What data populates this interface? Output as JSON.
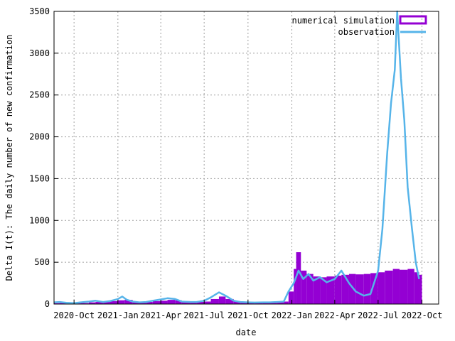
{
  "chart_data": {
    "type": "bar",
    "xlabel": "date",
    "ylabel": "Delta I(t): The daily number of new confirmation",
    "x_range": [
      "2020-08-20",
      "2022-11-05"
    ],
    "ylim": [
      0,
      3500
    ],
    "grid": true,
    "legend_position": "top-right",
    "x_ticks": [
      {
        "date": "2020-10-01",
        "label": "2020-Oct"
      },
      {
        "date": "2021-01-01",
        "label": "2021-Jan"
      },
      {
        "date": "2021-04-01",
        "label": "2021-Apr"
      },
      {
        "date": "2021-07-01",
        "label": "2021-Jul"
      },
      {
        "date": "2021-10-01",
        "label": "2021-Oct"
      },
      {
        "date": "2022-01-01",
        "label": "2022-Jan"
      },
      {
        "date": "2022-04-01",
        "label": "2022-Apr"
      },
      {
        "date": "2022-07-01",
        "label": "2022-Jul"
      },
      {
        "date": "2022-10-01",
        "label": "2022-Oct"
      }
    ],
    "y_ticks": [
      0,
      500,
      1000,
      1500,
      2000,
      2500,
      3000,
      3500
    ],
    "series": [
      {
        "name": "numerical simulation",
        "kind": "bar",
        "color": "#9400d3",
        "points": [
          [
            "2020-08-20",
            10
          ],
          [
            "2020-09-01",
            12
          ],
          [
            "2020-09-15",
            10
          ],
          [
            "2020-10-01",
            8
          ],
          [
            "2020-10-15",
            12
          ],
          [
            "2020-11-01",
            20
          ],
          [
            "2020-11-15",
            25
          ],
          [
            "2020-12-01",
            30
          ],
          [
            "2020-12-15",
            35
          ],
          [
            "2021-01-01",
            45
          ],
          [
            "2021-01-15",
            50
          ],
          [
            "2021-02-01",
            30
          ],
          [
            "2021-02-15",
            20
          ],
          [
            "2021-03-01",
            25
          ],
          [
            "2021-03-15",
            35
          ],
          [
            "2021-04-01",
            40
          ],
          [
            "2021-04-15",
            50
          ],
          [
            "2021-05-01",
            45
          ],
          [
            "2021-05-15",
            35
          ],
          [
            "2021-06-01",
            30
          ],
          [
            "2021-06-15",
            25
          ],
          [
            "2021-07-01",
            30
          ],
          [
            "2021-07-15",
            60
          ],
          [
            "2021-08-01",
            90
          ],
          [
            "2021-08-15",
            60
          ],
          [
            "2021-09-01",
            35
          ],
          [
            "2021-09-15",
            25
          ],
          [
            "2021-10-01",
            20
          ],
          [
            "2021-10-15",
            20
          ],
          [
            "2021-11-01",
            20
          ],
          [
            "2021-11-15",
            20
          ],
          [
            "2021-12-01",
            25
          ],
          [
            "2021-12-15",
            30
          ],
          [
            "2021-12-25",
            150
          ],
          [
            "2022-01-05",
            420
          ],
          [
            "2022-01-10",
            620
          ],
          [
            "2022-01-20",
            400
          ],
          [
            "2022-02-01",
            360
          ],
          [
            "2022-02-15",
            330
          ],
          [
            "2022-03-01",
            320
          ],
          [
            "2022-03-15",
            330
          ],
          [
            "2022-04-01",
            340
          ],
          [
            "2022-04-15",
            350
          ],
          [
            "2022-05-01",
            360
          ],
          [
            "2022-05-15",
            355
          ],
          [
            "2022-06-01",
            360
          ],
          [
            "2022-06-15",
            370
          ],
          [
            "2022-07-01",
            380
          ],
          [
            "2022-07-15",
            400
          ],
          [
            "2022-08-01",
            420
          ],
          [
            "2022-08-15",
            410
          ],
          [
            "2022-09-01",
            420
          ],
          [
            "2022-09-15",
            380
          ],
          [
            "2022-09-25",
            350
          ]
        ]
      },
      {
        "name": "observation",
        "kind": "line",
        "color": "#56b4e9",
        "points": [
          [
            "2020-08-20",
            20
          ],
          [
            "2020-09-01",
            25
          ],
          [
            "2020-09-15",
            15
          ],
          [
            "2020-10-01",
            10
          ],
          [
            "2020-10-15",
            20
          ],
          [
            "2020-11-01",
            30
          ],
          [
            "2020-11-15",
            40
          ],
          [
            "2020-12-01",
            25
          ],
          [
            "2020-12-15",
            35
          ],
          [
            "2021-01-01",
            60
          ],
          [
            "2021-01-10",
            90
          ],
          [
            "2021-01-20",
            50
          ],
          [
            "2021-02-01",
            30
          ],
          [
            "2021-02-15",
            20
          ],
          [
            "2021-03-01",
            25
          ],
          [
            "2021-03-15",
            40
          ],
          [
            "2021-04-01",
            55
          ],
          [
            "2021-04-15",
            70
          ],
          [
            "2021-05-01",
            60
          ],
          [
            "2021-05-15",
            30
          ],
          [
            "2021-06-01",
            25
          ],
          [
            "2021-06-15",
            25
          ],
          [
            "2021-07-01",
            40
          ],
          [
            "2021-07-15",
            80
          ],
          [
            "2021-08-01",
            140
          ],
          [
            "2021-08-15",
            100
          ],
          [
            "2021-09-01",
            40
          ],
          [
            "2021-09-15",
            25
          ],
          [
            "2021-10-01",
            20
          ],
          [
            "2021-10-15",
            18
          ],
          [
            "2021-11-01",
            20
          ],
          [
            "2021-11-15",
            20
          ],
          [
            "2021-12-01",
            25
          ],
          [
            "2021-12-15",
            30
          ],
          [
            "2021-12-25",
            150
          ],
          [
            "2022-01-05",
            250
          ],
          [
            "2022-01-15",
            400
          ],
          [
            "2022-01-25",
            300
          ],
          [
            "2022-02-05",
            360
          ],
          [
            "2022-02-15",
            280
          ],
          [
            "2022-03-01",
            320
          ],
          [
            "2022-03-15",
            260
          ],
          [
            "2022-04-01",
            300
          ],
          [
            "2022-04-15",
            400
          ],
          [
            "2022-05-01",
            250
          ],
          [
            "2022-05-15",
            150
          ],
          [
            "2022-06-01",
            100
          ],
          [
            "2022-06-15",
            120
          ],
          [
            "2022-07-01",
            400
          ],
          [
            "2022-07-10",
            900
          ],
          [
            "2022-07-20",
            1800
          ],
          [
            "2022-07-28",
            2400
          ],
          [
            "2022-08-05",
            2800
          ],
          [
            "2022-08-10",
            3500
          ],
          [
            "2022-08-18",
            2700
          ],
          [
            "2022-08-25",
            2200
          ],
          [
            "2022-09-01",
            1400
          ],
          [
            "2022-09-10",
            900
          ],
          [
            "2022-09-18",
            500
          ],
          [
            "2022-09-25",
            300
          ]
        ]
      }
    ]
  }
}
